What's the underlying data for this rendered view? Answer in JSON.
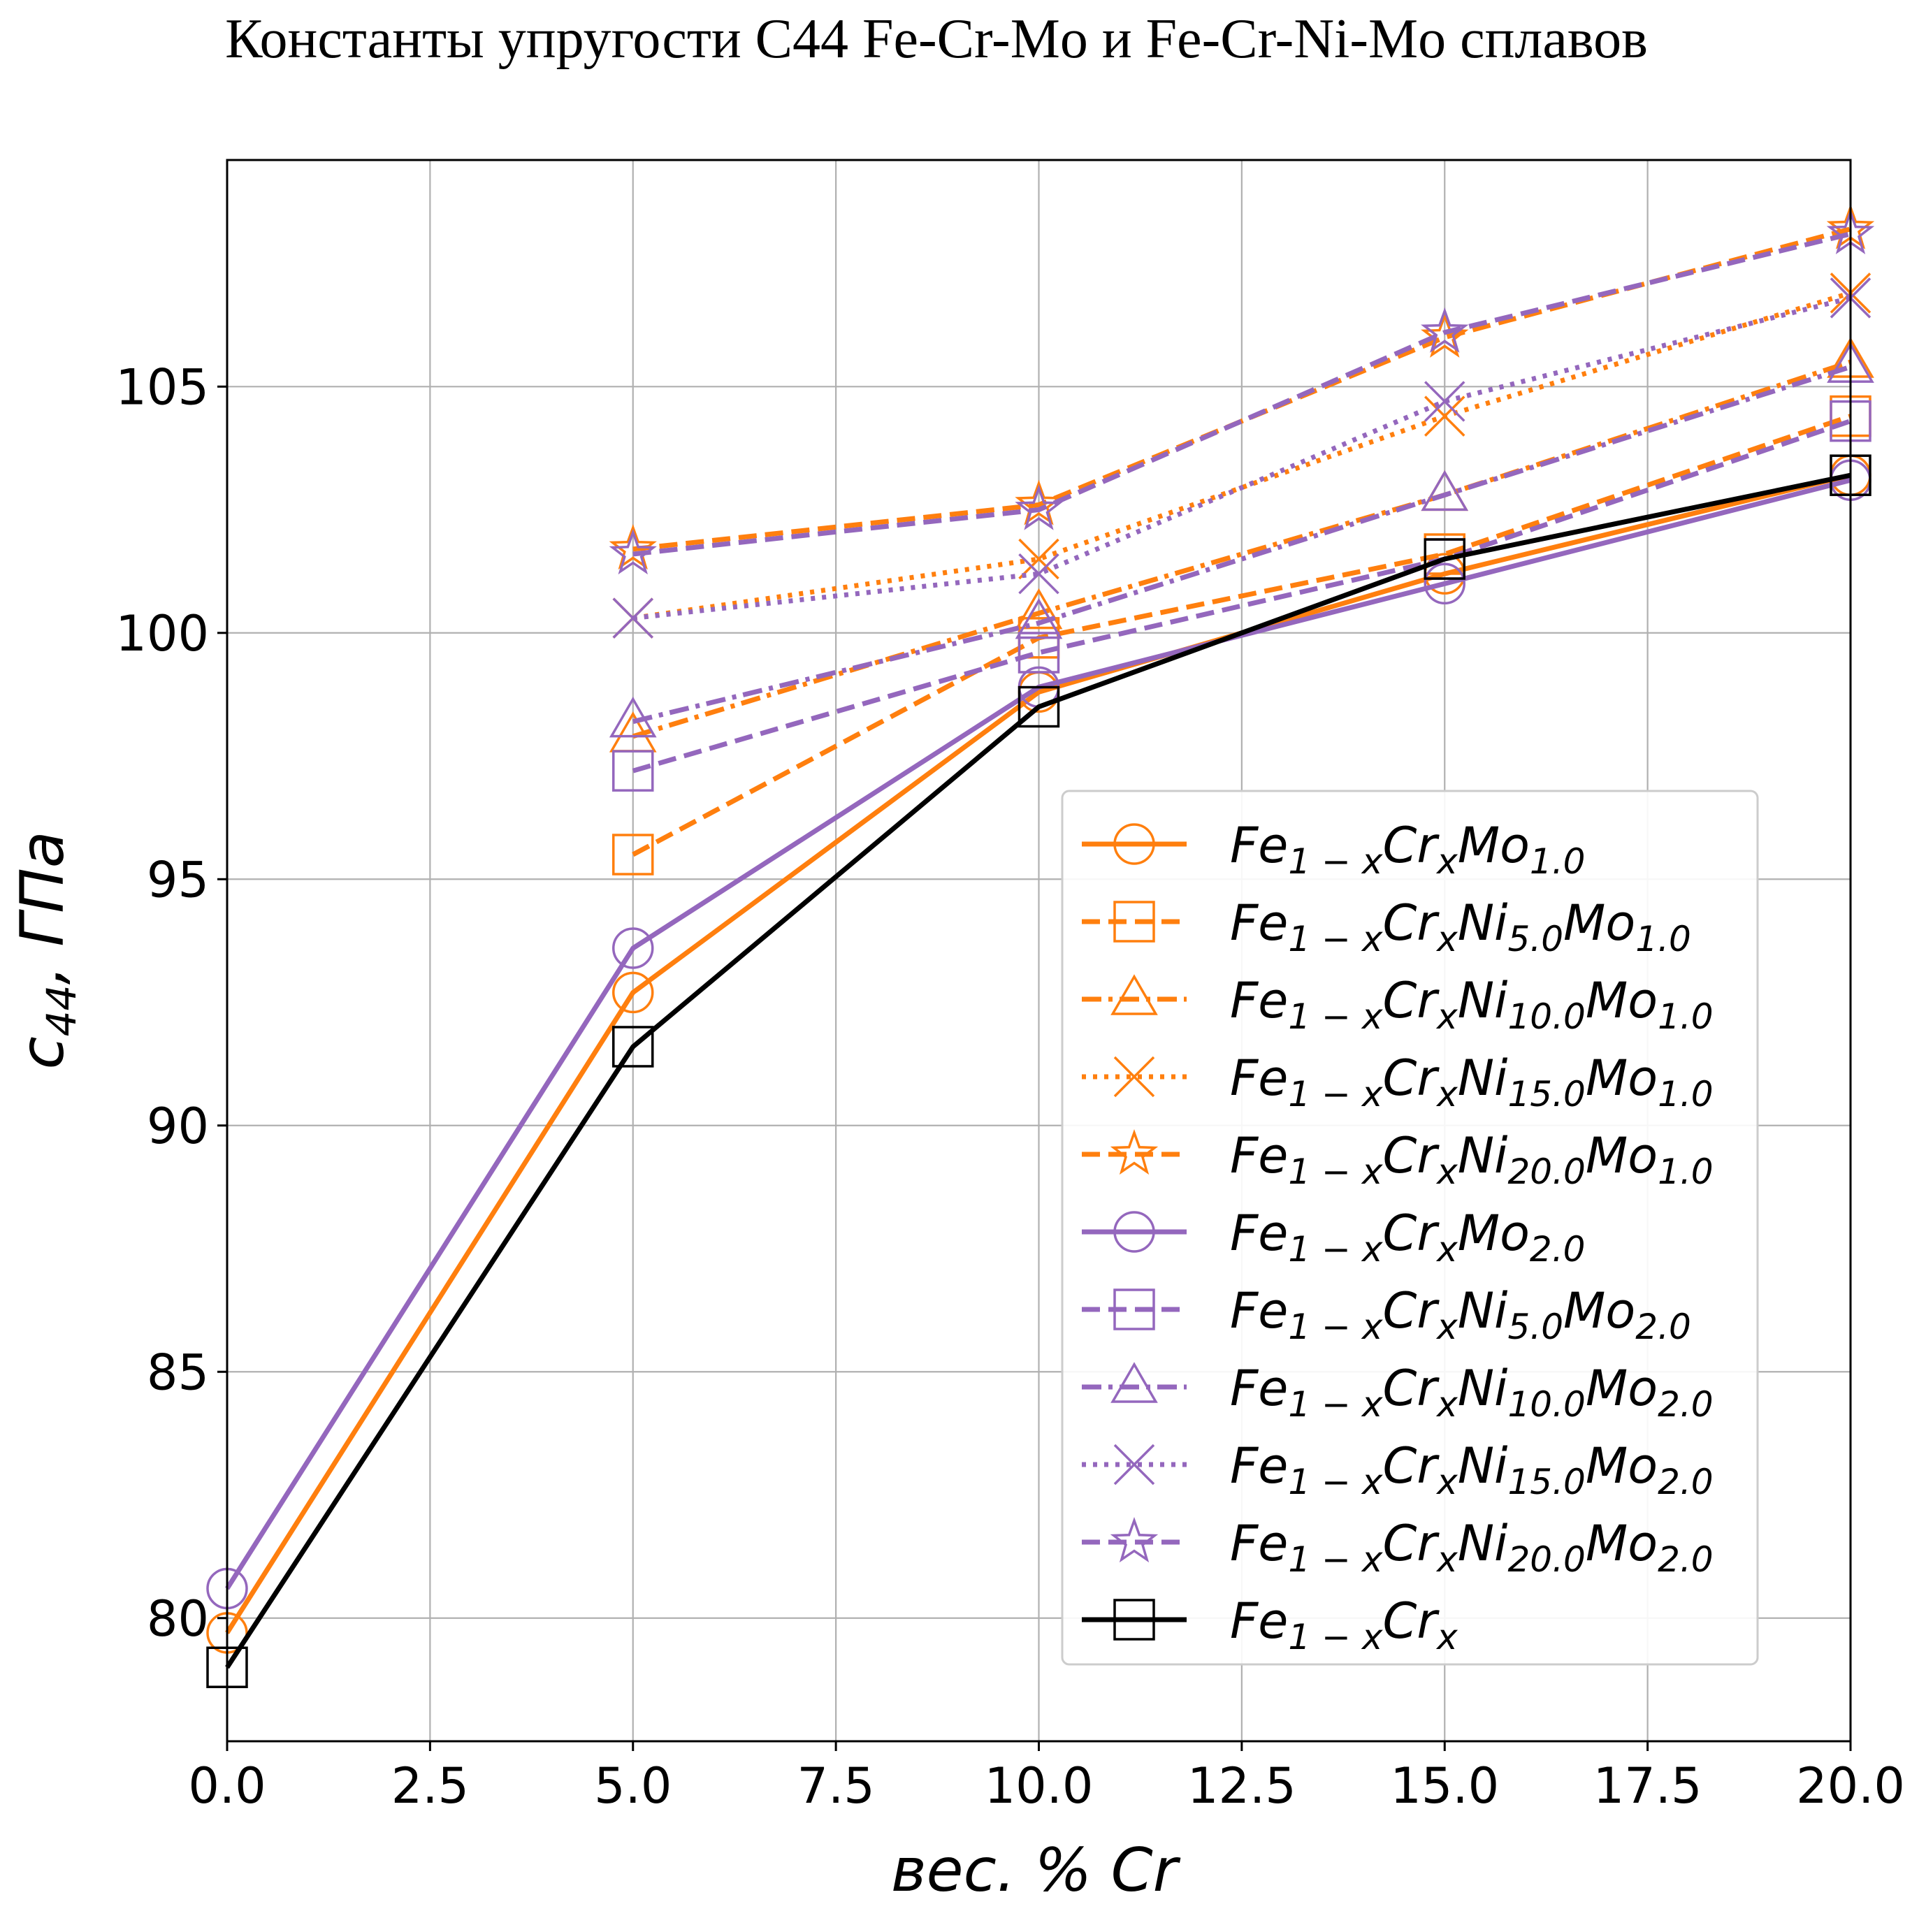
{
  "chart_data": {
    "type": "line",
    "title": "Константы упругости C44 Fe-Cr-Mo и Fe-Cr-Ni-Mo сплавов",
    "xlabel": "вес. % Cr",
    "ylabel": {
      "base": "c",
      "sub": "44",
      "rest": ",  ГПа"
    },
    "xlim": [
      0,
      20
    ],
    "ylim": [
      77.5,
      109.6
    ],
    "grid": true,
    "legend_position": "center-right",
    "x_ticks": [
      "0.0",
      "2.5",
      "5.0",
      "7.5",
      "10.0",
      "12.5",
      "15.0",
      "17.5",
      "20.0"
    ],
    "y_ticks": [
      "80",
      "85",
      "90",
      "95",
      "100",
      "105"
    ],
    "colors": {
      "orange": "#ff7f0e",
      "purple": "#9467bd",
      "black": "#000000"
    },
    "series": [
      {
        "name": {
          "base": "Fe",
          "s1": "1 − x",
          "m1": "Cr",
          "s2": "x",
          "m2": "Mo",
          "s3": "1.0",
          "m3": "",
          "s4": ""
        },
        "color": "#ff7f0e",
        "dash": "solid",
        "marker": "circle",
        "x": [
          0,
          5,
          10,
          15,
          20
        ],
        "y": [
          79.7,
          92.7,
          98.8,
          101.2,
          103.2
        ]
      },
      {
        "name": {
          "base": "Fe",
          "s1": "1 − x",
          "m1": "Cr",
          "s2": "x",
          "m2": "Ni",
          "s3": "5.0",
          "m3": "Mo",
          "s4": "1.0"
        },
        "color": "#ff7f0e",
        "dash": "dashed",
        "marker": "square",
        "x": [
          5,
          10,
          15,
          20
        ],
        "y": [
          95.5,
          99.9,
          101.6,
          104.4
        ]
      },
      {
        "name": {
          "base": "Fe",
          "s1": "1 − x",
          "m1": "Cr",
          "s2": "x",
          "m2": "Ni",
          "s3": "10.0",
          "m3": "Mo",
          "s4": "1.0"
        },
        "color": "#ff7f0e",
        "dash": "dashdot",
        "marker": "triangle",
        "x": [
          5,
          10,
          15,
          20
        ],
        "y": [
          97.9,
          100.4,
          102.8,
          105.5
        ]
      },
      {
        "name": {
          "base": "Fe",
          "s1": "1 − x",
          "m1": "Cr",
          "s2": "x",
          "m2": "Ni",
          "s3": "15.0",
          "m3": "Mo",
          "s4": "1.0"
        },
        "color": "#ff7f0e",
        "dash": "dotted",
        "marker": "x",
        "x": [
          5,
          10,
          15,
          20
        ],
        "y": [
          100.3,
          101.5,
          104.4,
          106.9
        ]
      },
      {
        "name": {
          "base": "Fe",
          "s1": "1 − x",
          "m1": "Cr",
          "s2": "x",
          "m2": "Ni",
          "s3": "20.0",
          "m3": "Mo",
          "s4": "1.0"
        },
        "color": "#ff7f0e",
        "dash": "dashed",
        "marker": "star",
        "x": [
          5,
          10,
          15,
          20
        ],
        "y": [
          101.7,
          102.6,
          106.0,
          108.2
        ]
      },
      {
        "name": {
          "base": "Fe",
          "s1": "1 − x",
          "m1": "Cr",
          "s2": "x",
          "m2": "Mo",
          "s3": "2.0",
          "m3": "",
          "s4": ""
        },
        "color": "#9467bd",
        "dash": "solid",
        "marker": "circle",
        "x": [
          0,
          5,
          10,
          15,
          20
        ],
        "y": [
          80.6,
          93.6,
          98.9,
          101.0,
          103.1
        ]
      },
      {
        "name": {
          "base": "Fe",
          "s1": "1 − x",
          "m1": "Cr",
          "s2": "x",
          "m2": "Ni",
          "s3": "5.0",
          "m3": "Mo",
          "s4": "2.0"
        },
        "color": "#9467bd",
        "dash": "dashed",
        "marker": "square",
        "x": [
          5,
          10,
          15,
          20
        ],
        "y": [
          97.2,
          99.6,
          101.5,
          104.3
        ]
      },
      {
        "name": {
          "base": "Fe",
          "s1": "1 − x",
          "m1": "Cr",
          "s2": "x",
          "m2": "Ni",
          "s3": "10.0",
          "m3": "Mo",
          "s4": "2.0"
        },
        "color": "#9467bd",
        "dash": "dashdot",
        "marker": "triangle",
        "x": [
          5,
          10,
          15,
          20
        ],
        "y": [
          98.2,
          100.2,
          102.8,
          105.4
        ]
      },
      {
        "name": {
          "base": "Fe",
          "s1": "1 − x",
          "m1": "Cr",
          "s2": "x",
          "m2": "Ni",
          "s3": "15.0",
          "m3": "Mo",
          "s4": "2.0"
        },
        "color": "#9467bd",
        "dash": "dotted",
        "marker": "x",
        "x": [
          5,
          10,
          15,
          20
        ],
        "y": [
          100.3,
          101.2,
          104.7,
          106.8
        ]
      },
      {
        "name": {
          "base": "Fe",
          "s1": "1 − x",
          "m1": "Cr",
          "s2": "x",
          "m2": "Ni",
          "s3": "20.0",
          "m3": "Mo",
          "s4": "2.0"
        },
        "color": "#9467bd",
        "dash": "dashed",
        "marker": "star",
        "x": [
          5,
          10,
          15,
          20
        ],
        "y": [
          101.6,
          102.5,
          106.1,
          108.1
        ]
      },
      {
        "name": {
          "base": "Fe",
          "s1": "1 − x",
          "m1": "Cr",
          "s2": "x",
          "m2": "",
          "s3": "",
          "m3": "",
          "s4": ""
        },
        "color": "#000000",
        "dash": "solid",
        "marker": "square",
        "x": [
          0,
          5,
          10,
          15,
          20
        ],
        "y": [
          79.0,
          91.6,
          98.5,
          101.5,
          103.2
        ]
      }
    ]
  }
}
